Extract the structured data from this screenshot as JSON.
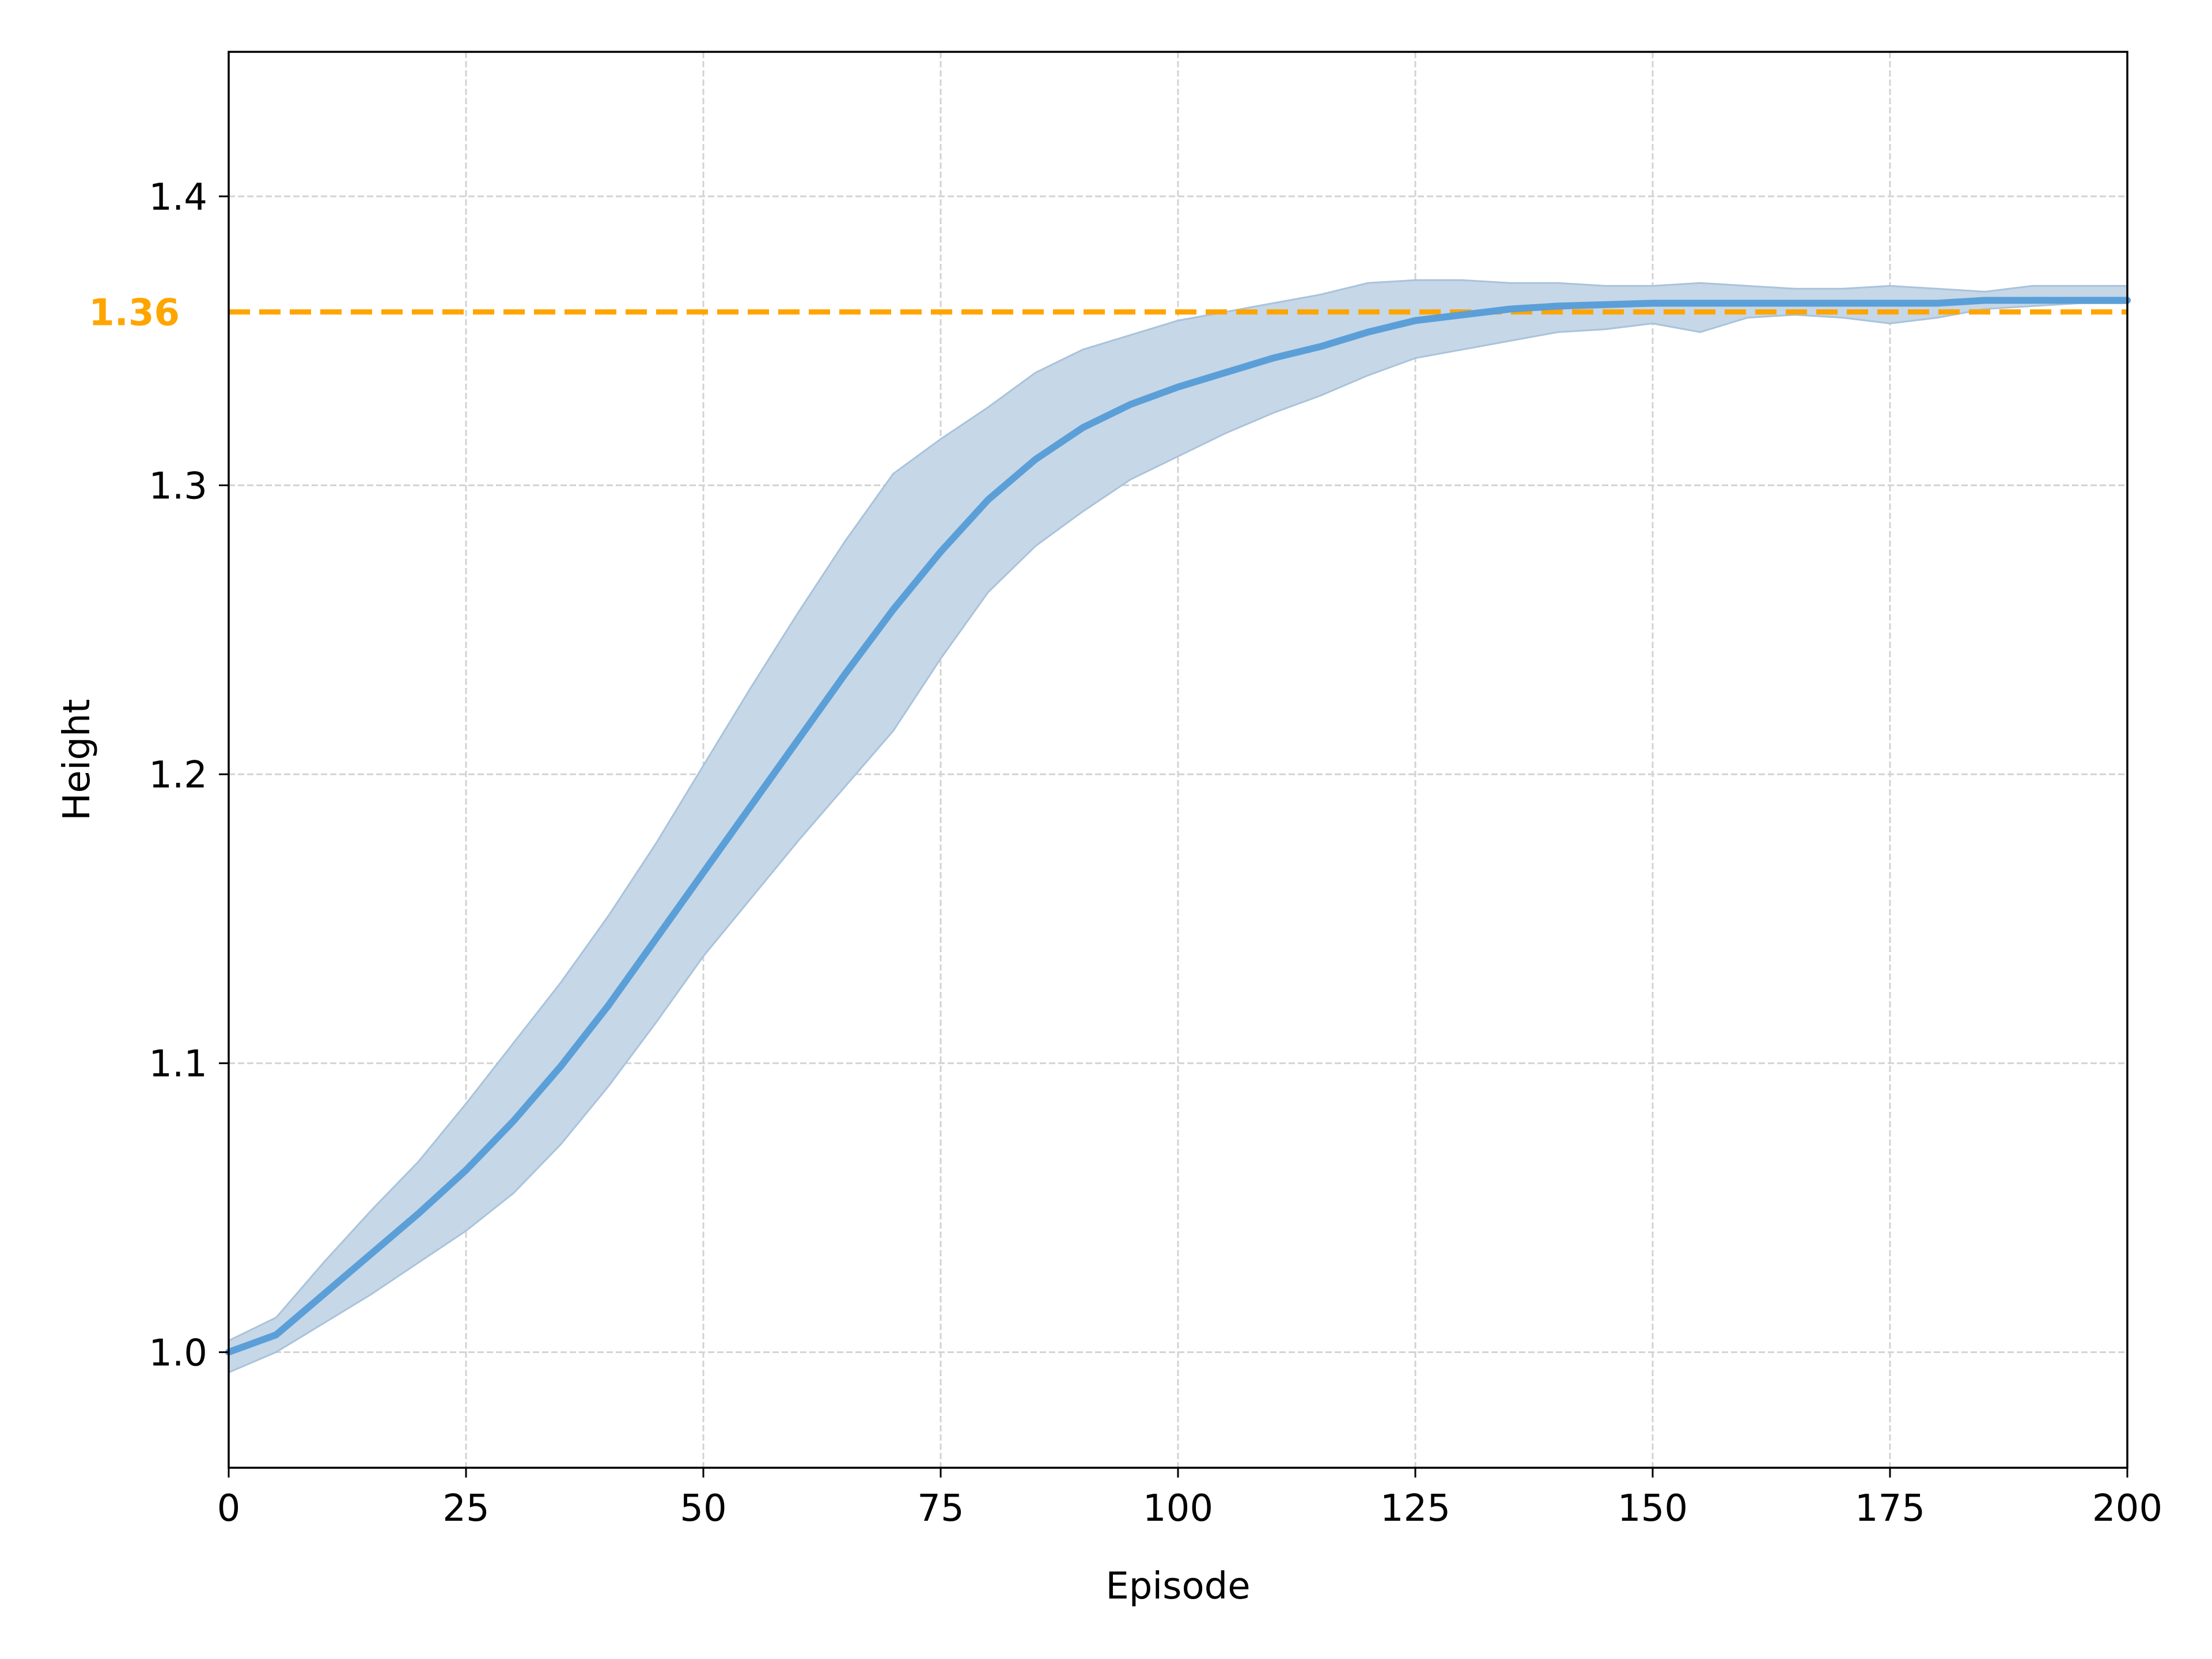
{
  "chart_data": {
    "type": "line",
    "title": "",
    "xlabel": "Episode",
    "ylabel": "Height",
    "xlim": [
      0,
      200
    ],
    "ylim": [
      0.96,
      1.45
    ],
    "xticks": [
      0,
      25,
      50,
      75,
      100,
      125,
      150,
      175,
      200
    ],
    "yticks": [
      1.0,
      1.1,
      1.2,
      1.3,
      1.4
    ],
    "xtick_labels": [
      "0",
      "25",
      "50",
      "75",
      "100",
      "125",
      "150",
      "175",
      "200"
    ],
    "ytick_labels": [
      "1.0",
      "1.1",
      "1.2",
      "1.3",
      "1.4"
    ],
    "grid": true,
    "grid_style": "dashed",
    "legend": "none",
    "reference_line": {
      "y": 1.36,
      "label": "1.36",
      "color": "#ffa500",
      "style": "dashed"
    },
    "series": [
      {
        "color": "#5b9fd8",
        "band_color": "#c6d7e7",
        "x": [
          0,
          5,
          10,
          15,
          20,
          25,
          30,
          35,
          40,
          45,
          50,
          55,
          60,
          65,
          70,
          75,
          80,
          85,
          90,
          95,
          100,
          105,
          110,
          115,
          120,
          125,
          130,
          135,
          140,
          145,
          150,
          155,
          160,
          165,
          170,
          175,
          180,
          185,
          190,
          195,
          200
        ],
        "mean": [
          1.0,
          1.006,
          1.02,
          1.034,
          1.048,
          1.063,
          1.08,
          1.099,
          1.12,
          1.143,
          1.166,
          1.189,
          1.212,
          1.235,
          1.257,
          1.277,
          1.295,
          1.309,
          1.32,
          1.328,
          1.334,
          1.339,
          1.344,
          1.348,
          1.353,
          1.357,
          1.359,
          1.361,
          1.362,
          1.3625,
          1.363,
          1.363,
          1.363,
          1.363,
          1.363,
          1.363,
          1.363,
          1.364,
          1.364,
          1.364,
          1.364
        ],
        "upper": [
          1.004,
          1.012,
          1.031,
          1.049,
          1.066,
          1.086,
          1.107,
          1.128,
          1.151,
          1.176,
          1.203,
          1.23,
          1.256,
          1.281,
          1.304,
          1.316,
          1.327,
          1.339,
          1.347,
          1.352,
          1.357,
          1.36,
          1.363,
          1.366,
          1.37,
          1.371,
          1.371,
          1.37,
          1.37,
          1.369,
          1.369,
          1.37,
          1.369,
          1.368,
          1.368,
          1.369,
          1.368,
          1.367,
          1.369,
          1.369,
          1.369
        ],
        "lower": [
          0.993,
          1.0,
          1.01,
          1.02,
          1.031,
          1.042,
          1.055,
          1.072,
          1.092,
          1.114,
          1.137,
          1.157,
          1.177,
          1.196,
          1.215,
          1.24,
          1.263,
          1.279,
          1.291,
          1.302,
          1.31,
          1.318,
          1.325,
          1.331,
          1.338,
          1.344,
          1.347,
          1.35,
          1.353,
          1.354,
          1.356,
          1.353,
          1.358,
          1.359,
          1.358,
          1.356,
          1.358,
          1.361,
          1.362,
          1.363,
          1.363
        ]
      }
    ]
  }
}
